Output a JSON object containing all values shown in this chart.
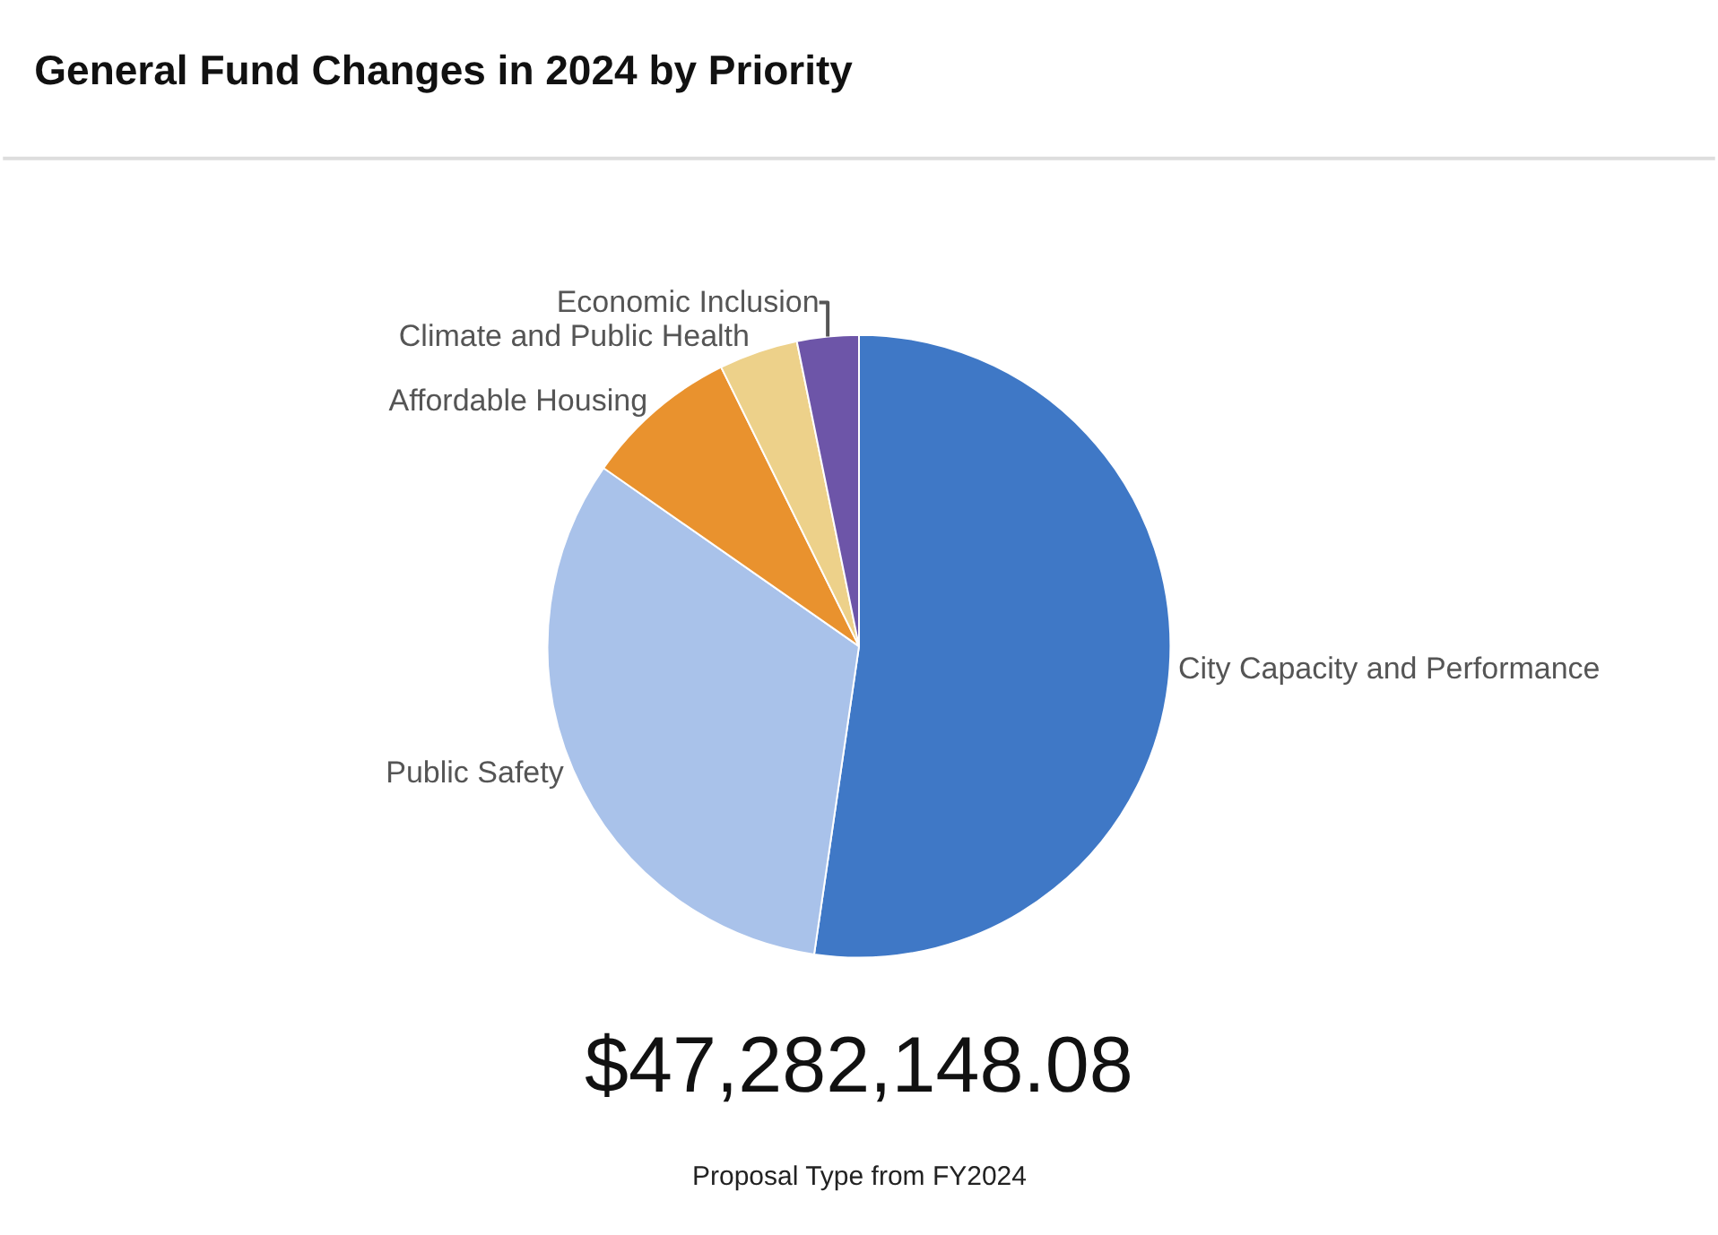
{
  "chart_data": {
    "type": "pie",
    "title": "General Fund Changes in 2024 by Priority",
    "categories": [
      "City Capacity and Performance",
      "Public Safety",
      "Affordable Housing",
      "Climate and Public Health",
      "Economic Inclusion"
    ],
    "values": [
      52.3,
      32.4,
      8,
      4.1,
      3.2
    ],
    "colors": [
      "#3f78c6",
      "#a9c2ea",
      "#e9922e",
      "#edd18a",
      "#6d55a8"
    ],
    "legend": false,
    "annotations": [
      "$47,282,148.08",
      "Proposal Type from FY2024"
    ]
  }
}
